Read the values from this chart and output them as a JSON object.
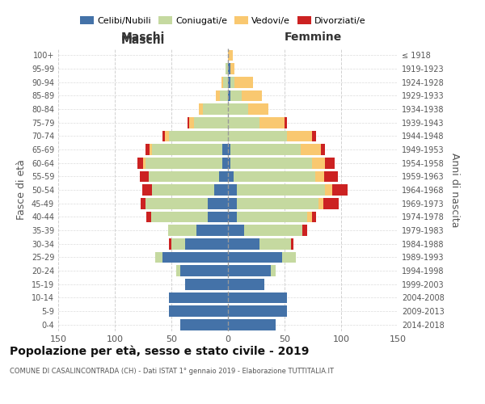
{
  "age_groups": [
    "0-4",
    "5-9",
    "10-14",
    "15-19",
    "20-24",
    "25-29",
    "30-34",
    "35-39",
    "40-44",
    "45-49",
    "50-54",
    "55-59",
    "60-64",
    "65-69",
    "70-74",
    "75-79",
    "80-84",
    "85-89",
    "90-94",
    "95-99",
    "100+"
  ],
  "birth_years": [
    "2014-2018",
    "2009-2013",
    "2004-2008",
    "1999-2003",
    "1994-1998",
    "1989-1993",
    "1984-1988",
    "1979-1983",
    "1974-1978",
    "1969-1973",
    "1964-1968",
    "1959-1963",
    "1954-1958",
    "1949-1953",
    "1944-1948",
    "1939-1943",
    "1934-1938",
    "1929-1933",
    "1924-1928",
    "1919-1923",
    "≤ 1918"
  ],
  "m_cel": [
    42,
    52,
    52,
    38,
    42,
    58,
    38,
    28,
    18,
    18,
    12,
    8,
    5,
    5,
    0,
    0,
    0,
    0,
    0,
    0,
    0
  ],
  "m_con": [
    0,
    0,
    0,
    0,
    4,
    6,
    12,
    25,
    50,
    55,
    55,
    62,
    68,
    62,
    52,
    30,
    22,
    7,
    4,
    2,
    0
  ],
  "m_ved": [
    0,
    0,
    0,
    0,
    0,
    0,
    0,
    0,
    0,
    0,
    0,
    0,
    2,
    2,
    4,
    4,
    4,
    4,
    2,
    0,
    0
  ],
  "m_div": [
    0,
    0,
    0,
    0,
    0,
    0,
    2,
    0,
    4,
    4,
    9,
    8,
    5,
    4,
    2,
    2,
    0,
    0,
    0,
    0,
    0
  ],
  "f_nub": [
    42,
    52,
    52,
    32,
    38,
    48,
    28,
    14,
    8,
    8,
    8,
    5,
    2,
    2,
    0,
    0,
    0,
    2,
    2,
    2,
    0
  ],
  "f_con": [
    0,
    0,
    0,
    0,
    4,
    12,
    28,
    52,
    62,
    72,
    78,
    72,
    72,
    62,
    52,
    28,
    18,
    10,
    4,
    0,
    0
  ],
  "f_ved": [
    0,
    0,
    0,
    0,
    0,
    0,
    0,
    0,
    4,
    4,
    6,
    8,
    12,
    18,
    22,
    22,
    18,
    18,
    16,
    4,
    4
  ],
  "f_div": [
    0,
    0,
    0,
    0,
    0,
    0,
    2,
    4,
    4,
    14,
    14,
    12,
    8,
    4,
    4,
    2,
    0,
    0,
    0,
    0,
    0
  ],
  "colors": {
    "celibi": "#4472a8",
    "coniugati": "#c5d9a0",
    "vedovi": "#f9c870",
    "divorziati": "#cc2222"
  },
  "xlim": 150,
  "title": "Popolazione per età, sesso e stato civile - 2019",
  "subtitle": "COMUNE DI CASALINCONTRADA (CH) - Dati ISTAT 1° gennaio 2019 - Elaborazione TUTTITALIA.IT",
  "ylabel_left": "Fasce di età",
  "ylabel_right": "Anni di nascita",
  "xlabel_maschi": "Maschi",
  "xlabel_femmine": "Femmine",
  "legend_labels": [
    "Celibi/Nubili",
    "Coniugati/e",
    "Vedovi/e",
    "Divorziati/e"
  ],
  "grid_color": "#cccccc",
  "xticks": [
    150,
    100,
    50,
    0,
    50,
    100,
    150
  ]
}
